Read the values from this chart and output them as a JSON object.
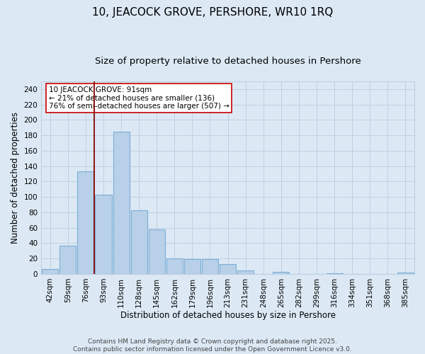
{
  "title": "10, JEACOCK GROVE, PERSHORE, WR10 1RQ",
  "subtitle": "Size of property relative to detached houses in Pershore",
  "xlabel": "Distribution of detached houses by size in Pershore",
  "ylabel": "Number of detached properties",
  "footer": "Contains HM Land Registry data © Crown copyright and database right 2025.\nContains public sector information licensed under the Open Government Licence v3.0.",
  "categories": [
    "42sqm",
    "59sqm",
    "76sqm",
    "93sqm",
    "110sqm",
    "128sqm",
    "145sqm",
    "162sqm",
    "179sqm",
    "196sqm",
    "213sqm",
    "231sqm",
    "248sqm",
    "265sqm",
    "282sqm",
    "299sqm",
    "316sqm",
    "334sqm",
    "351sqm",
    "368sqm",
    "385sqm"
  ],
  "values": [
    6,
    37,
    133,
    103,
    185,
    83,
    58,
    20,
    19,
    19,
    13,
    5,
    0,
    3,
    0,
    0,
    1,
    0,
    0,
    0,
    2
  ],
  "bar_color": "#b8d0e8",
  "bar_edge_color": "#7aaed6",
  "background_color": "#dce9f5",
  "vline_color": "#880000",
  "annotation_text": "10 JEACOCK GROVE: 91sqm\n← 21% of detached houses are smaller (136)\n76% of semi-detached houses are larger (507) →",
  "annotation_box_color": "#ffffff",
  "annotation_box_edge": "#cc0000",
  "ylim": [
    0,
    250
  ],
  "yticks": [
    0,
    20,
    40,
    60,
    80,
    100,
    120,
    140,
    160,
    180,
    200,
    220,
    240
  ],
  "grid_color": "#c0d0e0",
  "title_fontsize": 11,
  "subtitle_fontsize": 9.5,
  "axis_label_fontsize": 8.5,
  "tick_fontsize": 7.5,
  "footer_fontsize": 6.5,
  "annotation_fontsize": 7.5
}
